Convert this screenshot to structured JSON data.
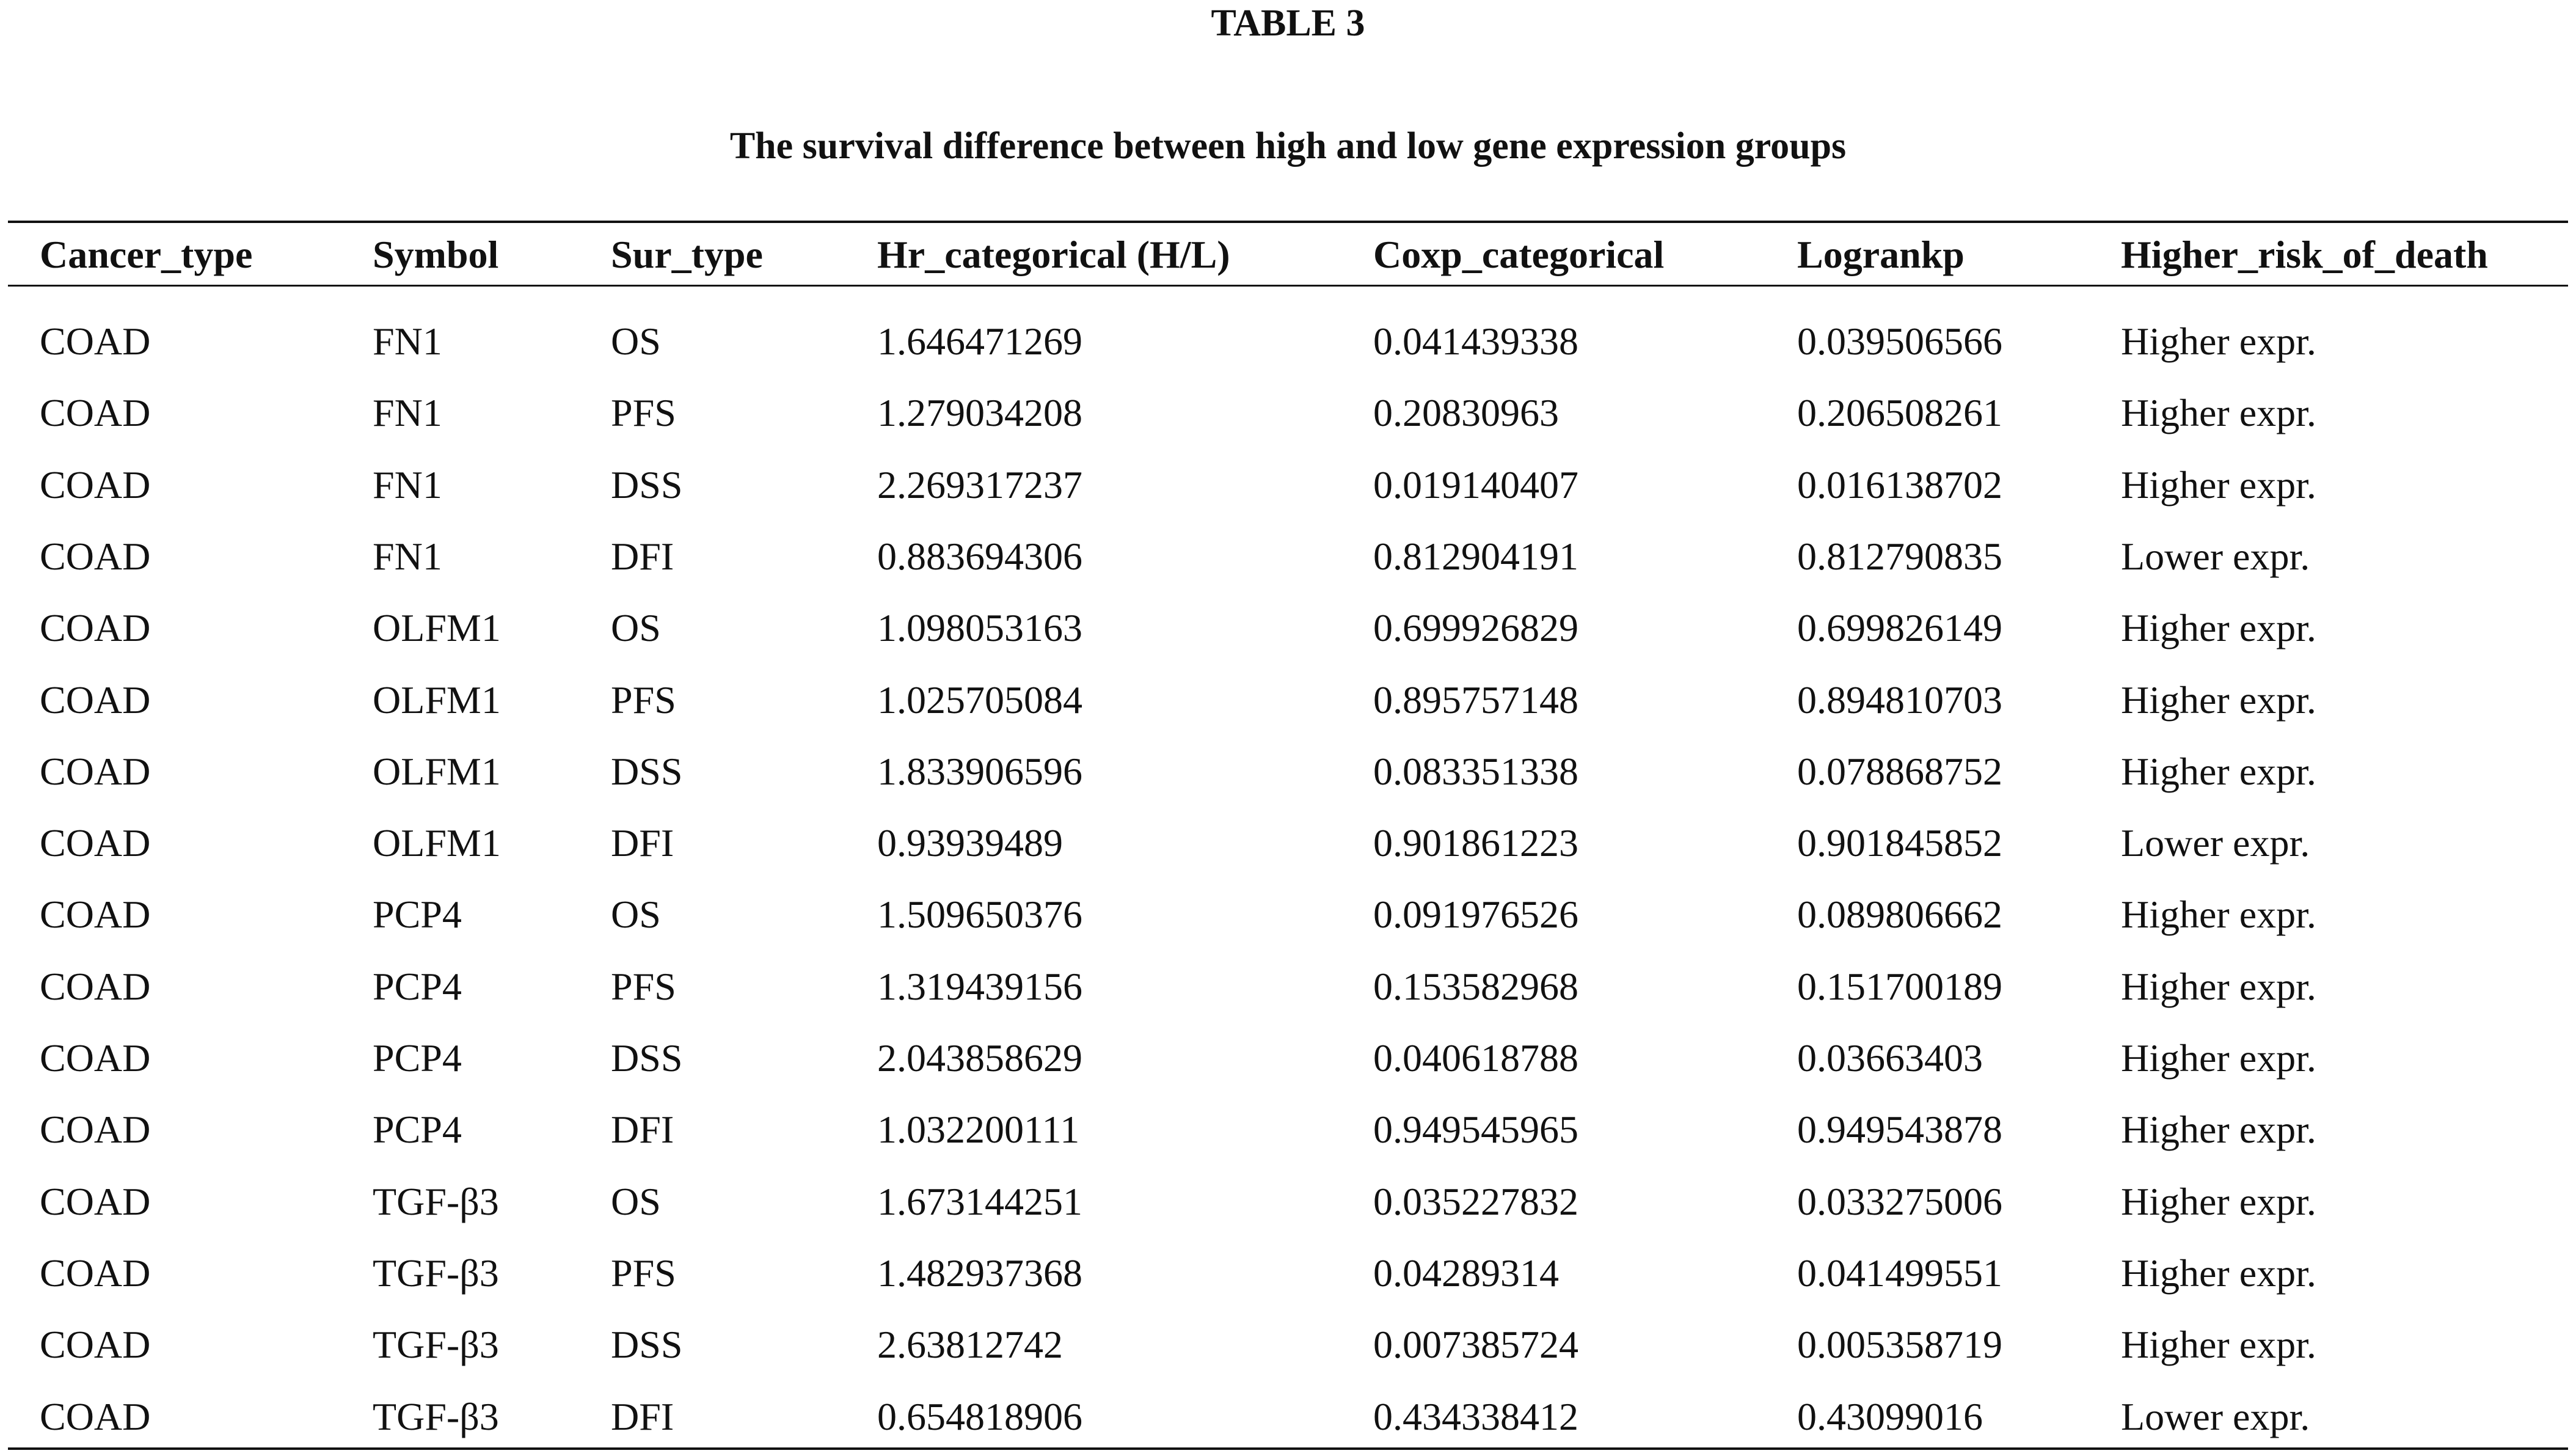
{
  "header": {
    "title": "TABLE 3",
    "subtitle": "The survival difference between high and low gene expression groups"
  },
  "table": {
    "columns": [
      "Cancer_type",
      "Symbol",
      "Sur_type",
      "Hr_categorical (H/L)",
      "Coxp_categorical",
      "Logrankp",
      "Higher_risk_of_death"
    ],
    "rows": [
      [
        "COAD",
        "FN1",
        "OS",
        "1.646471269",
        "0.041439338",
        "0.039506566",
        "Higher expr."
      ],
      [
        "COAD",
        "FN1",
        "PFS",
        "1.279034208",
        "0.20830963",
        "0.206508261",
        "Higher expr."
      ],
      [
        "COAD",
        "FN1",
        "DSS",
        "2.269317237",
        "0.019140407",
        "0.016138702",
        "Higher expr."
      ],
      [
        "COAD",
        "FN1",
        "DFI",
        "0.883694306",
        "0.812904191",
        "0.812790835",
        "Lower expr."
      ],
      [
        "COAD",
        "OLFM1",
        "OS",
        "1.098053163",
        "0.699926829",
        "0.699826149",
        "Higher expr."
      ],
      [
        "COAD",
        "OLFM1",
        "PFS",
        "1.025705084",
        "0.895757148",
        "0.894810703",
        "Higher expr."
      ],
      [
        "COAD",
        "OLFM1",
        "DSS",
        "1.833906596",
        "0.083351338",
        "0.078868752",
        "Higher expr."
      ],
      [
        "COAD",
        "OLFM1",
        "DFI",
        "0.93939489",
        "0.901861223",
        "0.901845852",
        "Lower expr."
      ],
      [
        "COAD",
        "PCP4",
        "OS",
        "1.509650376",
        "0.091976526",
        "0.089806662",
        "Higher expr."
      ],
      [
        "COAD",
        "PCP4",
        "PFS",
        "1.319439156",
        "0.153582968",
        "0.151700189",
        "Higher expr."
      ],
      [
        "COAD",
        "PCP4",
        "DSS",
        "2.043858629",
        "0.040618788",
        "0.03663403",
        "Higher expr."
      ],
      [
        "COAD",
        "PCP4",
        "DFI",
        "1.032200111",
        "0.949545965",
        "0.949543878",
        "Higher expr."
      ],
      [
        "COAD",
        "TGF-β3",
        "OS",
        "1.673144251",
        "0.035227832",
        "0.033275006",
        "Higher expr."
      ],
      [
        "COAD",
        "TGF-β3",
        "PFS",
        "1.482937368",
        "0.04289314",
        "0.041499551",
        "Higher expr."
      ],
      [
        "COAD",
        "TGF-β3",
        "DSS",
        "2.63812742",
        "0.007385724",
        "0.005358719",
        "Higher expr."
      ],
      [
        "COAD",
        "TGF-β3",
        "DFI",
        "0.654818906",
        "0.434338412",
        "0.43099016",
        "Lower expr."
      ]
    ]
  }
}
